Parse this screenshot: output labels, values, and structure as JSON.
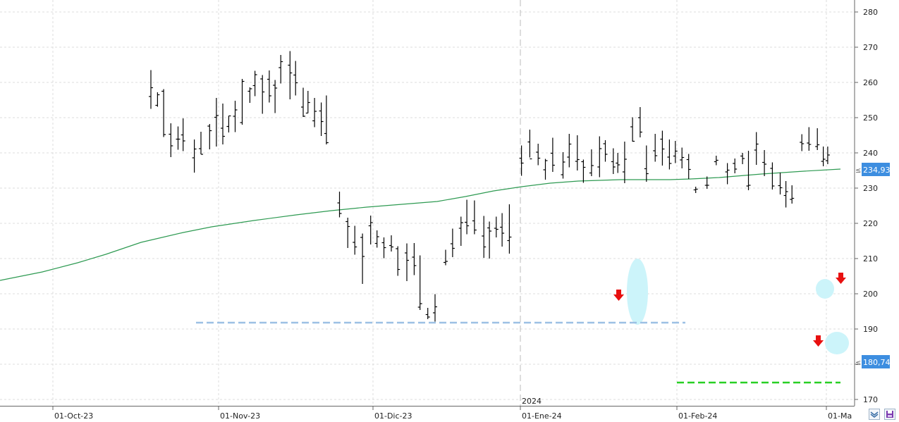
{
  "chart_data": {
    "type": "ohlc-bar",
    "y_axis": {
      "ticks": [
        280,
        270,
        260,
        250,
        240,
        230,
        220,
        210,
        200,
        190,
        180,
        170
      ],
      "ylim": [
        167,
        283
      ],
      "position": "right"
    },
    "x_axis": {
      "labels": [
        "01-Oct-23",
        "01-Nov-23",
        "01-Dic-23",
        "01-Ene-24",
        "01-Feb-24",
        "01-Ma"
      ],
      "year_marker": "2024"
    },
    "grid": true,
    "last_price_label": "180,74",
    "moving_average_label": "234,93",
    "colors": {
      "bars": "#000000",
      "moving_average": "#2e9a52",
      "label_bg": "#3d8ee0",
      "support_line": "#9cc0e4",
      "target_line": "#28d024",
      "arrows": "#e81010",
      "highlight": "#cdf5fb"
    },
    "bars": [
      [
        214.0,
        263.5,
        252.5,
        256.0,
        258.5
      ],
      [
        223.4,
        257.2,
        253.1,
        253.5,
        256.5
      ],
      [
        232.1,
        258.1,
        244.5,
        257.5,
        245.2
      ],
      [
        242.3,
        248.4,
        238.8,
        245.3,
        242.0
      ],
      [
        252.5,
        247.5,
        240.9,
        243.9,
        243.9
      ],
      [
        259.7,
        249.8,
        240.5,
        245.1,
        243.4
      ],
      [
        275.6,
        243.8,
        234.4,
        238.6,
        241.1
      ],
      [
        285.0,
        246.0,
        239.6,
        241.2,
        239.6
      ],
      [
        297.3,
        248.2,
        241.0,
        247.6,
        246.3
      ],
      [
        306.9,
        255.6,
        241.8,
        250.1,
        250.6
      ],
      [
        316.0,
        254.0,
        242.4,
        247.0,
        244.7
      ],
      [
        324.4,
        250.5,
        245.8,
        247.5,
        250.5
      ],
      [
        333.5,
        254.8,
        245.9,
        250.4,
        252.2
      ],
      [
        343.5,
        261.0,
        248.0,
        248.6,
        260.3
      ],
      [
        354.4,
        258.6,
        254.2,
        257.5,
        258.2
      ],
      [
        361.6,
        263.3,
        256.1,
        259.1,
        262.2
      ],
      [
        372.2,
        262.1,
        251.1,
        261.0,
        257.3
      ],
      [
        381.9,
        263.4,
        254.3,
        260.9,
        256.2
      ],
      [
        390.1,
        260.7,
        251.3,
        259.2,
        258.4
      ],
      [
        398.2,
        267.8,
        259.7,
        264.2,
        265.9
      ],
      [
        411.3,
        268.9,
        255.2,
        264.9,
        262.7
      ],
      [
        419.2,
        266.1,
        256.3,
        262.1,
        259.9
      ],
      [
        430.0,
        258.5,
        250.2,
        253.0,
        250.4
      ],
      [
        436.8,
        257.6,
        251.3,
        251.3,
        254.3
      ],
      [
        446.1,
        255.6,
        247.3,
        249.1,
        251.8
      ],
      [
        455.6,
        254.3,
        244.8,
        251.9,
        248.9
      ],
      [
        462.9,
        256.3,
        242.4,
        245.5,
        242.9
      ],
      [
        481.5,
        229.0,
        221.7,
        225.8,
        222.8
      ],
      [
        493.2,
        221.6,
        213.0,
        220.5,
        219.1
      ],
      [
        503.2,
        219.3,
        211.1,
        214.6,
        213.3
      ],
      [
        514.1,
        217.1,
        202.8,
        216.0,
        210.6
      ],
      [
        525.7,
        222.2,
        214.0,
        219.3,
        220.2
      ],
      [
        534.7,
        218.0,
        213.1,
        214.3,
        216.2
      ],
      [
        544.5,
        216.0,
        210.1,
        214.5,
        213.1
      ],
      [
        555.0,
        216.6,
        212.0,
        213.7,
        213.3
      ],
      [
        564.2,
        213.5,
        205.1,
        212.8,
        206.9
      ],
      [
        577.0,
        214.3,
        203.6,
        211.6,
        209.5
      ],
      [
        587.4,
        214.4,
        205.3,
        210.4,
        208.0
      ],
      [
        595.7,
        210.9,
        195.4,
        196.2,
        197.2
      ],
      [
        606.7,
        196.0,
        192.8,
        194.1,
        193.4
      ],
      [
        617.0,
        199.9,
        192.1,
        194.6,
        196.3
      ],
      [
        632.0,
        212.5,
        208.1,
        208.9,
        209.2
      ],
      [
        641.9,
        218.5,
        210.4,
        214.2,
        212.9
      ],
      [
        653.8,
        221.9,
        213.6,
        218.6,
        220.2
      ],
      [
        662.1,
        226.7,
        216.9,
        220.3,
        219.3
      ],
      [
        672.9,
        226.5,
        216.9,
        220.7,
        218.1
      ],
      [
        686.2,
        222.1,
        210.2,
        216.4,
        213.3
      ],
      [
        694.1,
        220.5,
        210.0,
        218.7,
        217.8
      ],
      [
        703.8,
        221.9,
        216.0,
        218.6,
        218.3
      ],
      [
        712.1,
        222.9,
        213.4,
        218.9,
        217.2
      ],
      [
        722.4,
        225.4,
        211.4,
        215.1,
        216.1
      ],
      [
        739.6,
        242.1,
        233.5,
        238.5,
        237.1
      ],
      [
        751.4,
        246.6,
        238.7,
        243.1,
        238.3
      ],
      [
        763.2,
        242.6,
        236.5,
        240.2,
        238.5
      ],
      [
        773.5,
        238.3,
        232.4,
        235.2,
        237.8
      ],
      [
        783.9,
        244.3,
        234.6,
        239.9,
        236.5
      ],
      [
        798.5,
        240.2,
        232.7,
        233.8,
        237.4
      ],
      [
        807.3,
        245.4,
        235.9,
        238.8,
        242.5
      ],
      [
        818.8,
        245.0,
        235.0,
        237.6,
        238.1
      ],
      [
        827.4,
        238.1,
        231.5,
        237.5,
        235.9
      ],
      [
        838.9,
        241.0,
        233.4,
        234.3,
        236.4
      ],
      [
        850.3,
        244.7,
        233.1,
        236.0,
        241.2
      ],
      [
        858.5,
        243.6,
        237.5,
        242.6,
        239.6
      ],
      [
        869.8,
        241.3,
        234.0,
        237.5,
        236.0
      ],
      [
        876.2,
        240.0,
        234.3,
        237.1,
        236.6
      ],
      [
        885.9,
        243.2,
        231.4,
        234.6,
        238.2
      ],
      [
        897.1,
        250.1,
        243.2,
        247.4,
        243.3
      ],
      [
        907.9,
        253.0,
        244.4,
        250.0,
        245.9
      ],
      [
        916.8,
        242.1,
        231.8,
        235.5,
        234.1
      ],
      [
        929.2,
        245.4,
        237.5,
        240.6,
        239.2
      ],
      [
        939.4,
        246.3,
        236.4,
        243.9,
        241.1
      ],
      [
        949.4,
        243.8,
        235.3,
        238.8,
        237.0
      ],
      [
        957.8,
        243.4,
        237.1,
        239.1,
        240.5
      ],
      [
        967.2,
        241.5,
        235.6,
        238.0,
        238.7
      ],
      [
        976.7,
        239.7,
        232.6,
        238.1,
        235.3
      ],
      [
        986.7,
        230.4,
        228.6,
        229.5,
        229.7
      ],
      [
        1002.7,
        233.3,
        229.8,
        230.8,
        230.8
      ],
      [
        1015.8,
        239.2,
        236.5,
        237.5,
        237.9
      ],
      [
        1031.6,
        237.1,
        231.1,
        234.6,
        235.1
      ],
      [
        1042.2,
        238.4,
        234.2,
        237.0,
        235.4
      ],
      [
        1053.1,
        240.0,
        236.8,
        239.1,
        238.4
      ],
      [
        1061.5,
        240.6,
        229.4,
        230.6,
        230.8
      ],
      [
        1072.7,
        245.9,
        236.6,
        240.8,
        242.5
      ],
      [
        1084.1,
        240.8,
        233.4,
        237.3,
        236.8
      ],
      [
        1095.4,
        237.3,
        229.6,
        235.6,
        230.6
      ],
      [
        1106.5,
        234.4,
        228.2,
        230.7,
        230.1
      ],
      [
        1114.6,
        232.0,
        224.5,
        227.9,
        229.0
      ],
      [
        1123.2,
        230.8,
        225.6,
        226.8,
        227.1
      ],
      [
        1137.2,
        245.3,
        240.5,
        243.0,
        242.6
      ],
      [
        1147.3,
        247.3,
        240.6,
        242.8,
        242.4
      ],
      [
        1159.2,
        247.0,
        240.8,
        241.8,
        242.3
      ],
      [
        1167.6,
        241.8,
        236.2,
        237.6,
        238.2
      ],
      [
        1173.9,
        241.8,
        236.8,
        237.8,
        239.4
      ]
    ]
  },
  "ui": {
    "corner_buttons": [
      "zoom-fit",
      "save"
    ]
  }
}
